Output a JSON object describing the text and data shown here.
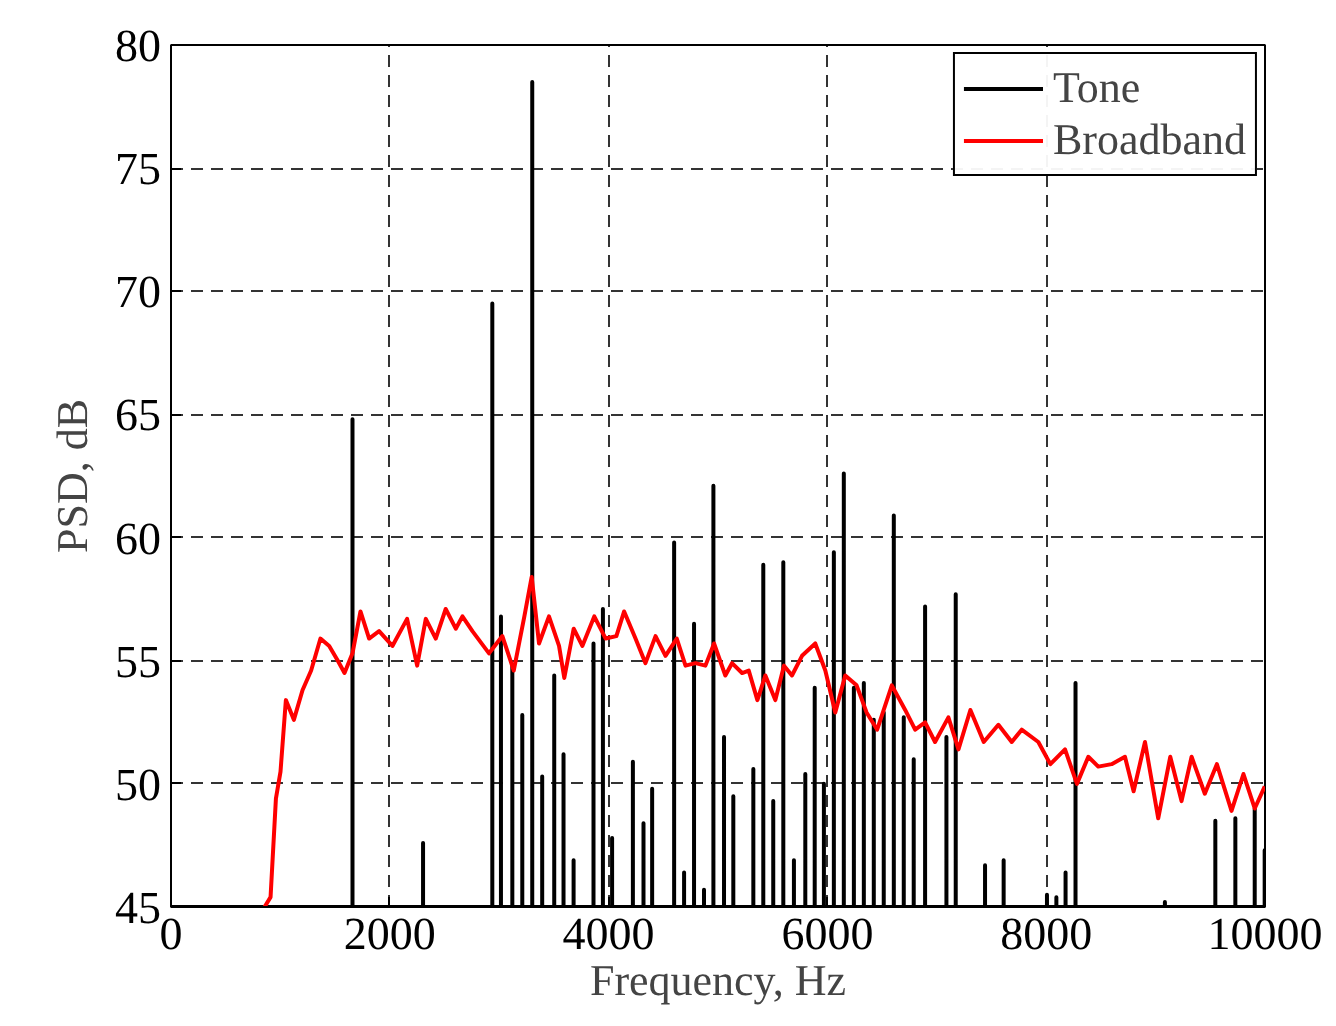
{
  "chart_data": {
    "type": "line",
    "xlabel": "Frequency, Hz",
    "ylabel": "PSD, dB",
    "xlim": [
      0,
      10000
    ],
    "xticks": [
      0,
      2000,
      4000,
      6000,
      8000,
      10000
    ],
    "ylim": [
      45,
      80
    ],
    "yticks": [
      45,
      50,
      55,
      60,
      65,
      70,
      75,
      80
    ],
    "grid": true,
    "legend": "top right",
    "line_style": "solid",
    "series": [
      {
        "name": "Tone",
        "color": "#000000",
        "x": [
          0,
          1659,
          1659,
          1659,
          2304,
          2304,
          2304,
          2937,
          2937,
          2937,
          3016,
          3016,
          3016,
          3120,
          3120,
          3120,
          3211,
          3211,
          3211,
          3302,
          3302,
          3302,
          3393,
          3393,
          3393,
          3503,
          3503,
          3503,
          3588,
          3588,
          3588,
          3680,
          3680,
          3680,
          3862,
          3862,
          3862,
          3948,
          3948,
          3948,
          4032,
          4032,
          4032,
          4222,
          4222,
          4222,
          4319,
          4319,
          4319,
          4398,
          4398,
          4398,
          4599,
          4599,
          4599,
          4690,
          4690,
          4690,
          4781,
          4781,
          4781,
          4872,
          4872,
          4872,
          4958,
          4958,
          4958,
          5055,
          5055,
          5055,
          5140,
          5140,
          5140,
          5323,
          5323,
          5323,
          5414,
          5414,
          5414,
          5505,
          5505,
          5505,
          5597,
          5597,
          5597,
          5694,
          5694,
          5694,
          5798,
          5798,
          5798,
          5884,
          5884,
          5884,
          5968,
          5968,
          5968,
          6059,
          6059,
          6059,
          6150,
          6150,
          6150,
          6242,
          6242,
          6242,
          6333,
          6333,
          6333,
          6424,
          6424,
          6424,
          6515,
          6515,
          6515,
          6607,
          6607,
          6607,
          6698,
          6698,
          6698,
          6789,
          6789,
          6789,
          6893,
          6893,
          6893,
          7088,
          7088,
          7088,
          7173,
          7173,
          7173,
          7441,
          7441,
          7441,
          7611,
          7611,
          7611,
          8007,
          8007,
          8007,
          8093,
          8093,
          8093,
          8177,
          8177,
          8177,
          8268,
          8268,
          8268,
          9085,
          9085,
          9085,
          9546,
          9546,
          9546,
          9729,
          9729,
          9729,
          9906,
          9906,
          9906,
          9997,
          9997,
          9997,
          10000
        ],
        "values": [
          45,
          45,
          64.8,
          45,
          45,
          47.6,
          45,
          45,
          69.5,
          45,
          45,
          56.8,
          45,
          45,
          54.8,
          45,
          45,
          52.8,
          45,
          45,
          78.5,
          45,
          45,
          50.3,
          45,
          45,
          54.4,
          45,
          45,
          51.2,
          45,
          45,
          46.9,
          45,
          45,
          55.7,
          45,
          45,
          57.1,
          45,
          45,
          47.8,
          45,
          45,
          50.9,
          45,
          45,
          48.4,
          45,
          45,
          49.8,
          45,
          45,
          59.8,
          45,
          45,
          46.4,
          45,
          45,
          56.5,
          45,
          45,
          45.7,
          45,
          45,
          62.1,
          45,
          45,
          51.9,
          45,
          45,
          49.5,
          45,
          45,
          50.6,
          45,
          45,
          58.9,
          45,
          45,
          49.3,
          45,
          45,
          59.0,
          45,
          45,
          46.9,
          45,
          45,
          50.4,
          45,
          45,
          53.9,
          45,
          45,
          50.0,
          45,
          45,
          59.4,
          45,
          45,
          62.6,
          45,
          45,
          53.9,
          45,
          45,
          54.1,
          45,
          45,
          52.6,
          45,
          45,
          52.9,
          45,
          45,
          60.9,
          45,
          45,
          52.7,
          45,
          45,
          51.0,
          45,
          45,
          57.2,
          45,
          45,
          51.9,
          45,
          45,
          57.7,
          45,
          45,
          46.7,
          45,
          45,
          46.9,
          45,
          45,
          45.5,
          45,
          45,
          45.4,
          45,
          45,
          46.4,
          45,
          45,
          54.1,
          45,
          45,
          45.2,
          45,
          45,
          48.5,
          45,
          45,
          48.6,
          45,
          45,
          49.0,
          45,
          45,
          47.3,
          45,
          45
        ]
      },
      {
        "name": "Broadband",
        "color": "#ff0000",
        "x": [
          855,
          910,
          959,
          1001,
          1050,
          1123,
          1202,
          1281,
          1366,
          1446,
          1525,
          1586,
          1659,
          1732,
          1811,
          1902,
          2024,
          2158,
          2250,
          2329,
          2420,
          2511,
          2603,
          2664,
          2755,
          2907,
          3029,
          3133,
          3230,
          3297,
          3364,
          3455,
          3547,
          3595,
          3681,
          3760,
          3869,
          3973,
          4071,
          4142,
          4246,
          4337,
          4429,
          4520,
          4623,
          4703,
          4794,
          4885,
          4964,
          5067,
          5128,
          5220,
          5281,
          5360,
          5433,
          5524,
          5603,
          5676,
          5768,
          5889,
          5981,
          6072,
          6163,
          6267,
          6358,
          6455,
          6589,
          6711,
          6802,
          6893,
          6984,
          7106,
          7198,
          7307,
          7429,
          7563,
          7685,
          7776,
          7928,
          8038,
          8172,
          8281,
          8385,
          8476,
          8598,
          8720,
          8799,
          8903,
          9024,
          9134,
          9237,
          9329,
          9450,
          9560,
          9694,
          9803,
          9906,
          9998
        ],
        "values": [
          45.0,
          45.4,
          49.4,
          50.5,
          53.4,
          52.6,
          53.8,
          54.6,
          55.9,
          55.6,
          55.0,
          54.5,
          55.3,
          57.0,
          55.9,
          56.2,
          55.6,
          56.7,
          54.8,
          56.7,
          55.9,
          57.1,
          56.3,
          56.8,
          56.2,
          55.3,
          56.0,
          54.6,
          56.8,
          58.4,
          55.7,
          56.8,
          55.6,
          54.3,
          56.3,
          55.6,
          56.8,
          55.9,
          56.0,
          57.0,
          55.9,
          54.9,
          56.0,
          55.2,
          55.9,
          54.8,
          54.9,
          54.8,
          55.7,
          54.4,
          54.9,
          54.5,
          54.6,
          53.4,
          54.4,
          53.4,
          54.8,
          54.4,
          55.2,
          55.7,
          54.6,
          52.9,
          54.4,
          54.0,
          52.9,
          52.2,
          54.0,
          53.0,
          52.2,
          52.5,
          51.7,
          52.7,
          51.4,
          53.0,
          51.7,
          52.4,
          51.7,
          52.2,
          51.7,
          50.8,
          51.4,
          50.0,
          51.1,
          50.7,
          50.8,
          51.1,
          49.7,
          51.7,
          48.6,
          51.1,
          49.3,
          51.1,
          49.6,
          50.8,
          48.9,
          50.4,
          49.0,
          49.9
        ]
      }
    ]
  }
}
